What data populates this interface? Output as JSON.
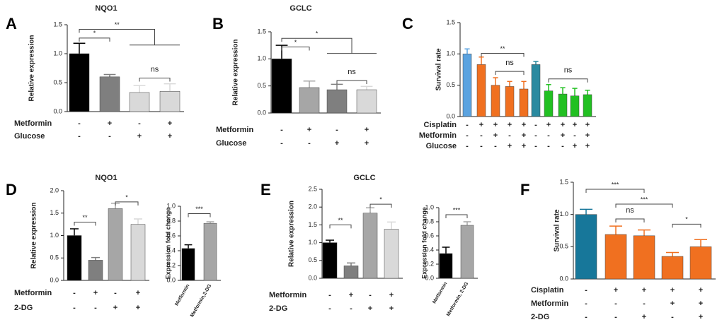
{
  "chart_data": [
    {
      "type": "bar",
      "panel": "A",
      "title": "NQO1",
      "ylabel": "Relative expression",
      "values": [
        1.0,
        0.6,
        0.33,
        0.35
      ],
      "errors": [
        0.18,
        0.04,
        0.12,
        0.13
      ],
      "colors": [
        "#000000",
        "#7f7f7f",
        "#d9d9d9",
        "#d9d9d9"
      ],
      "ylim": [
        0,
        1.5
      ],
      "yticks": [
        {
          "value": 0,
          "label": "0.0"
        },
        0.5,
        {
          "value": 1,
          "label": "1.0"
        },
        1.5
      ],
      "conditions": [
        {
          "name": "Metformin",
          "values": [
            "-",
            "+",
            "-",
            "+"
          ]
        },
        {
          "name": "Glucose",
          "values": [
            "-",
            "-",
            "+",
            "+"
          ]
        }
      ],
      "annotations": [
        "*",
        "**",
        "ns"
      ]
    },
    {
      "type": "bar",
      "panel": "B",
      "title": "GCLC",
      "ylabel": "Relative expression",
      "values": [
        1.0,
        0.47,
        0.43,
        0.43
      ],
      "errors": [
        0.25,
        0.12,
        0.1,
        0.06
      ],
      "colors": [
        "#000000",
        "#a6a6a6",
        "#7f7f7f",
        "#d9d9d9"
      ],
      "ylim": [
        0,
        1.5
      ],
      "yticks": [
        {
          "value": 0,
          "label": "0.0"
        },
        0.5,
        {
          "value": 1,
          "label": "1.0"
        },
        1.5
      ],
      "conditions": [
        {
          "name": "Metformin",
          "values": [
            "-",
            "+",
            "-",
            "+"
          ]
        },
        {
          "name": "Glucose",
          "values": [
            "-",
            "-",
            "+",
            "+"
          ]
        }
      ],
      "annotations": [
        "*",
        "*",
        "ns"
      ]
    },
    {
      "type": "bar",
      "panel": "C",
      "ylabel": "Survival rate",
      "values": [
        1.0,
        0.83,
        0.5,
        0.48,
        0.44,
        0.83,
        0.41,
        0.36,
        0.33,
        0.35
      ],
      "errors": [
        0.08,
        0.12,
        0.12,
        0.08,
        0.12,
        0.05,
        0.1,
        0.1,
        0.12,
        0.07
      ],
      "colors": [
        "#5ba3e0",
        "#f07020",
        "#f07020",
        "#f07020",
        "#f07020",
        "#2a8aa0",
        "#22c022",
        "#22c022",
        "#22c022",
        "#22c022"
      ],
      "ylim": [
        0,
        1.5
      ],
      "yticks": [
        {
          "value": 0,
          "label": "0.0"
        },
        0.5,
        {
          "value": 1,
          "label": "1.0"
        },
        1.5
      ],
      "conditions": [
        {
          "name": "Cisplatin",
          "values": [
            "-",
            "+",
            "+",
            "+",
            "+",
            "-",
            "+",
            "+",
            "+",
            "+"
          ]
        },
        {
          "name": "Metformin",
          "values": [
            "-",
            "-",
            "+",
            "-",
            "+",
            "-",
            "-",
            "+",
            "-",
            "+"
          ]
        },
        {
          "name": "Glucose",
          "values": [
            "-",
            "-",
            "-",
            "+",
            "+",
            "-",
            "-",
            "-",
            "+",
            "+"
          ]
        }
      ],
      "annotations": [
        "**",
        "ns",
        "ns"
      ]
    },
    {
      "type": "bar",
      "panel": "D",
      "title": "NQO1",
      "ylabel": "Relative expression",
      "values": [
        1.0,
        0.45,
        1.6,
        1.25
      ],
      "errors": [
        0.15,
        0.06,
        0.12,
        0.12
      ],
      "colors": [
        "#000000",
        "#7f7f7f",
        "#a6a6a6",
        "#d9d9d9"
      ],
      "ylim": [
        0,
        2
      ],
      "yticks": [
        {
          "value": 0,
          "label": "0.0"
        },
        0.5,
        {
          "value": 1,
          "label": "1.0"
        },
        1.5,
        {
          "value": 2,
          "label": "2.0"
        }
      ],
      "conditions": [
        {
          "name": "Metformin",
          "values": [
            "-",
            "+",
            "-",
            "+"
          ]
        },
        {
          "name": "2-DG",
          "values": [
            "-",
            "-",
            "+",
            "+"
          ]
        }
      ],
      "annotations": [
        "**",
        "*"
      ]
    },
    {
      "type": "bar",
      "ylabel": "Expression fold change",
      "categories": [
        "Metformin",
        "Metformin,2-DG"
      ],
      "values": [
        0.43,
        0.77
      ],
      "errors": [
        0.05,
        0.02
      ],
      "colors": [
        "#000000",
        "#a6a6a6"
      ],
      "ylim": [
        0,
        1
      ],
      "yticks": [
        {
          "value": 0,
          "label": "0.0"
        },
        0.2,
        0.4,
        0.6,
        0.8,
        {
          "value": 1,
          "label": "1.0"
        }
      ],
      "annotations": [
        "***"
      ]
    },
    {
      "type": "bar",
      "panel": "E",
      "title": "GCLC",
      "ylabel": "Relative expression",
      "values": [
        1.0,
        0.35,
        1.83,
        1.38
      ],
      "errors": [
        0.07,
        0.08,
        0.15,
        0.2
      ],
      "colors": [
        "#000000",
        "#7f7f7f",
        "#a6a6a6",
        "#d9d9d9"
      ],
      "ylim": [
        0,
        2.5
      ],
      "yticks": [
        {
          "value": 0,
          "label": "0.0"
        },
        0.5,
        {
          "value": 1,
          "label": "1.0"
        },
        1.5,
        {
          "value": 2,
          "label": "2.0"
        },
        2.5
      ],
      "conditions": [
        {
          "name": "Metformin",
          "values": [
            "-",
            "+",
            "-",
            "+"
          ]
        },
        {
          "name": "2-DG",
          "values": [
            "-",
            "-",
            "+",
            "+"
          ]
        }
      ],
      "annotations": [
        "**",
        "*"
      ]
    },
    {
      "type": "bar",
      "ylabel": "Expression fold change",
      "categories": [
        "Metformin",
        "Metformin, 2-DG"
      ],
      "values": [
        0.35,
        0.75
      ],
      "errors": [
        0.09,
        0.05
      ],
      "colors": [
        "#000000",
        "#a6a6a6"
      ],
      "ylim": [
        0,
        1
      ],
      "yticks": [
        {
          "value": 0,
          "label": "0.0"
        },
        0.2,
        0.4,
        0.6,
        0.8,
        {
          "value": 1,
          "label": "1.0"
        }
      ],
      "annotations": [
        "***"
      ]
    },
    {
      "type": "bar",
      "panel": "F",
      "ylabel": "Survival rate",
      "values": [
        1.0,
        0.69,
        0.67,
        0.35,
        0.5
      ],
      "errors": [
        0.08,
        0.13,
        0.09,
        0.06,
        0.11
      ],
      "colors": [
        "#17779a",
        "#f07020",
        "#f07020",
        "#f07020",
        "#f07020"
      ],
      "ylim": [
        0,
        1.5
      ],
      "yticks": [
        {
          "value": 0,
          "label": "0.0"
        },
        0.5,
        {
          "value": 1,
          "label": "1.0"
        },
        1.5
      ],
      "conditions": [
        {
          "name": "Cisplatin",
          "values": [
            "-",
            "+",
            "+",
            "+",
            "+"
          ]
        },
        {
          "name": "Metformin",
          "values": [
            "-",
            "-",
            "-",
            "+",
            "+"
          ]
        },
        {
          "name": "2-DG",
          "values": [
            "-",
            "-",
            "+",
            "-",
            "+"
          ]
        }
      ],
      "annotations": [
        "***",
        "ns",
        "***",
        "*"
      ]
    }
  ]
}
